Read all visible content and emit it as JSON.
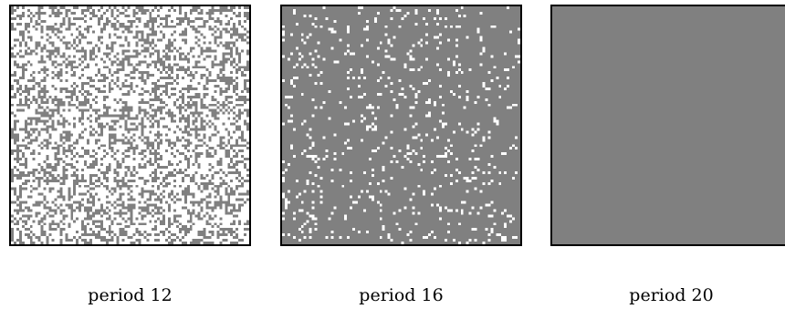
{
  "colors": {
    "live": "#ffffff",
    "dead": "#808080",
    "border": "#000000"
  },
  "panels": [
    {
      "caption": "period 12",
      "white_fraction": 0.6
    },
    {
      "caption": "period 16",
      "white_fraction": 0.09
    },
    {
      "caption": "period 20",
      "white_fraction": 0
    }
  ]
}
